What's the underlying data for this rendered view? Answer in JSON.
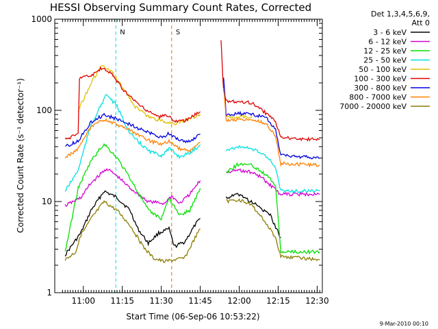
{
  "chart_data": {
    "type": "line",
    "title": "HESSI Observing Summary Count Rates, Corrected",
    "xlabel": "Start Time (06-Sep-06 10:53:22)",
    "ylabel": "Corrected Count Rate (s⁻¹ detector⁻¹)",
    "footer_text": "9-Mar-2010 00:10",
    "x_axis": {
      "unit": "minutes after 10:53:22",
      "range": [
        -4,
        99
      ],
      "ticks": [
        {
          "x": 7,
          "label": "11:00"
        },
        {
          "x": 22,
          "label": "11:15"
        },
        {
          "x": 37,
          "label": "11:30"
        },
        {
          "x": 52,
          "label": "11:45"
        },
        {
          "x": 67,
          "label": "12:00"
        },
        {
          "x": 82,
          "label": "12:15"
        },
        {
          "x": 97,
          "label": "12:30"
        }
      ]
    },
    "y_axis": {
      "scale": "log",
      "range": [
        1,
        1000
      ],
      "ticks": [
        {
          "y": 1,
          "label": "1"
        },
        {
          "y": 10,
          "label": "10"
        },
        {
          "y": 100,
          "label": "100"
        },
        {
          "y": 1000,
          "label": "1000"
        }
      ]
    },
    "legend": {
      "position": "right",
      "header": [
        "Det 1,3,4,5,6,9,",
        "Att 0"
      ]
    },
    "series": [
      {
        "name": "3 - 6 keV",
        "color": "#000000",
        "pre": [
          [
            0,
            2.6
          ],
          [
            6,
            4.5
          ],
          [
            10,
            8
          ],
          [
            15,
            13
          ],
          [
            20,
            11
          ],
          [
            25,
            8
          ],
          [
            28,
            5
          ],
          [
            32,
            3.5
          ],
          [
            36,
            4.5
          ],
          [
            40,
            5
          ],
          [
            42,
            3.2
          ],
          [
            46,
            3.6
          ],
          [
            50,
            5.5
          ],
          [
            52,
            6.5
          ]
        ],
        "post": [
          [
            62,
            11
          ],
          [
            67,
            12
          ],
          [
            74,
            9
          ],
          [
            79,
            7
          ],
          [
            83,
            4
          ]
        ]
      },
      {
        "name": "6 - 12 keV",
        "color": "#d400d4",
        "pre": [
          [
            0,
            9
          ],
          [
            6,
            11
          ],
          [
            10,
            16
          ],
          [
            16,
            23
          ],
          [
            20,
            19
          ],
          [
            25,
            14
          ],
          [
            32,
            10
          ],
          [
            38,
            9.5
          ],
          [
            41,
            11.5
          ],
          [
            44,
            9.5
          ],
          [
            48,
            12
          ],
          [
            52,
            17
          ]
        ],
        "post": [
          [
            62,
            21
          ],
          [
            67,
            22
          ],
          [
            72,
            21
          ],
          [
            76,
            18
          ],
          [
            79,
            15
          ],
          [
            83,
            12
          ],
          [
            98,
            12
          ]
        ]
      },
      {
        "name": "12 - 25 keV",
        "color": "#00e000",
        "pre": [
          [
            0,
            2.8
          ],
          [
            5,
            14
          ],
          [
            10,
            28
          ],
          [
            15,
            43
          ],
          [
            20,
            30
          ],
          [
            25,
            18
          ],
          [
            32,
            8
          ],
          [
            37,
            6.5
          ],
          [
            40,
            11
          ],
          [
            44,
            7
          ],
          [
            48,
            8
          ],
          [
            52,
            14
          ]
        ],
        "post": [
          [
            62,
            21
          ],
          [
            67,
            26
          ],
          [
            72,
            25
          ],
          [
            77,
            20
          ],
          [
            81,
            15
          ],
          [
            83,
            2.8
          ],
          [
            98,
            2.8
          ]
        ]
      },
      {
        "name": "25 - 50 keV",
        "color": "#00e0e0",
        "pre": [
          [
            0,
            13
          ],
          [
            5,
            22
          ],
          [
            10,
            70
          ],
          [
            16,
            150
          ],
          [
            20,
            110
          ],
          [
            25,
            55
          ],
          [
            32,
            36
          ],
          [
            37,
            32
          ],
          [
            40,
            38
          ],
          [
            44,
            31
          ],
          [
            48,
            34
          ],
          [
            52,
            42
          ]
        ],
        "post": [
          [
            62,
            37
          ],
          [
            67,
            40
          ],
          [
            72,
            38
          ],
          [
            77,
            32
          ],
          [
            81,
            24
          ],
          [
            83,
            13
          ],
          [
            98,
            13
          ]
        ]
      },
      {
        "name": "50 - 100 keV",
        "color": "#e0c000",
        "pre": [
          [
            5,
            100
          ],
          [
            10,
            200
          ],
          [
            14,
            310
          ],
          [
            18,
            260
          ],
          [
            22,
            180
          ],
          [
            27,
            110
          ],
          [
            32,
            85
          ],
          [
            38,
            75
          ],
          [
            43,
            72
          ],
          [
            52,
            90
          ]
        ],
        "post": [
          [
            62,
            85
          ],
          [
            72,
            85
          ]
        ]
      },
      {
        "name": "100 - 300 keV",
        "color": "#e00000",
        "pre": [
          [
            0,
            48
          ],
          [
            5,
            55
          ],
          [
            5.5,
            230
          ],
          [
            10,
            240
          ],
          [
            14,
            290
          ],
          [
            18,
            250
          ],
          [
            23,
            160
          ],
          [
            30,
            105
          ],
          [
            36,
            85
          ],
          [
            40,
            88
          ],
          [
            42,
            75
          ],
          [
            47,
            78
          ],
          [
            50,
            90
          ],
          [
            52,
            97
          ]
        ],
        "post": [
          [
            60,
            580
          ],
          [
            61,
            160
          ],
          [
            62,
            125
          ],
          [
            67,
            125
          ],
          [
            72,
            120
          ],
          [
            76,
            100
          ],
          [
            81,
            75
          ],
          [
            83,
            50
          ],
          [
            98,
            48
          ]
        ]
      },
      {
        "name": "300 - 800 keV",
        "color": "#0000e0",
        "pre": [
          [
            0,
            40
          ],
          [
            5,
            46
          ],
          [
            10,
            75
          ],
          [
            15,
            90
          ],
          [
            20,
            80
          ],
          [
            25,
            70
          ],
          [
            32,
            57
          ],
          [
            37,
            50
          ],
          [
            40,
            56
          ],
          [
            44,
            47
          ],
          [
            48,
            45
          ],
          [
            52,
            55
          ]
        ],
        "post": [
          [
            61,
            230
          ],
          [
            62,
            90
          ],
          [
            67,
            92
          ],
          [
            72,
            90
          ],
          [
            77,
            85
          ],
          [
            81,
            62
          ],
          [
            83,
            32
          ],
          [
            98,
            30
          ]
        ]
      },
      {
        "name": "800 - 7000 keV",
        "color": "#ff8000",
        "pre": [
          [
            0,
            30
          ],
          [
            5,
            38
          ],
          [
            10,
            65
          ],
          [
            15,
            80
          ],
          [
            20,
            70
          ],
          [
            25,
            60
          ],
          [
            32,
            47
          ],
          [
            37,
            42
          ],
          [
            40,
            46
          ],
          [
            44,
            38
          ],
          [
            48,
            36
          ],
          [
            52,
            45
          ]
        ],
        "post": [
          [
            61,
            180
          ],
          [
            62,
            78
          ],
          [
            67,
            80
          ],
          [
            72,
            78
          ],
          [
            77,
            73
          ],
          [
            81,
            52
          ],
          [
            83,
            26
          ],
          [
            98,
            25
          ]
        ]
      },
      {
        "name": "7000 - 20000 keV",
        "color": "#8b7d00",
        "pre": [
          [
            0,
            2.3
          ],
          [
            4,
            2.8
          ],
          [
            6,
            4.2
          ],
          [
            10,
            6.5
          ],
          [
            15,
            10
          ],
          [
            20,
            8
          ],
          [
            25,
            5.5
          ],
          [
            30,
            3.2
          ],
          [
            34,
            2.4
          ],
          [
            38,
            2.2
          ],
          [
            42,
            2.3
          ],
          [
            46,
            2.4
          ],
          [
            50,
            4
          ],
          [
            52,
            5
          ]
        ],
        "post": [
          [
            62,
            10
          ],
          [
            67,
            10.5
          ],
          [
            72,
            9
          ],
          [
            77,
            6
          ],
          [
            81,
            4
          ],
          [
            83,
            2.5
          ],
          [
            98,
            2.3
          ]
        ]
      }
    ],
    "markers": [
      {
        "label": "N",
        "at": 19.5,
        "color": "#00e0e0"
      },
      {
        "label": "S",
        "at": 41,
        "color": "#e07000"
      }
    ]
  }
}
